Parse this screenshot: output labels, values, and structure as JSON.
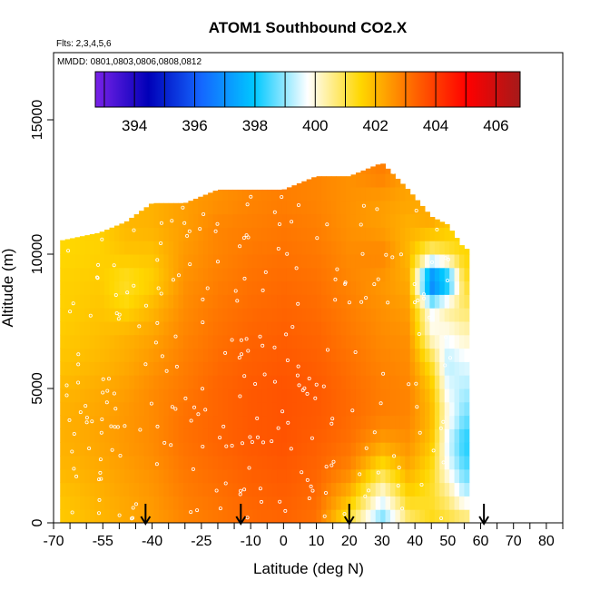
{
  "chart_data": {
    "type": "heatmap",
    "title": "ATOM1 Southbound CO2.X",
    "flights_note": "Flts: 2,3,4,5,6",
    "dates_note": "MMDD: 0801,0803,0806,0808,0812",
    "xlabel": "Latitude (deg N)",
    "ylabel": "Altitude (m)",
    "xlim": [
      -70,
      85
    ],
    "ylim": [
      0,
      17500
    ],
    "x_ticks": [
      -70,
      -55,
      -40,
      -25,
      -10,
      0,
      10,
      20,
      30,
      40,
      50,
      60,
      70,
      80
    ],
    "y_ticks": [
      0,
      5000,
      10000,
      15000
    ],
    "colorbar": {
      "range": [
        392.7,
        406.8
      ],
      "ticks": [
        394,
        396,
        398,
        400,
        402,
        404,
        406
      ],
      "colors": [
        "#7a22e8",
        "#0000b8",
        "#1467ff",
        "#00c8ff",
        "#ffffff",
        "#ffd700",
        "#ff6600",
        "#ff0000",
        "#a51a1a"
      ]
    },
    "arrows_latitude": [
      -42,
      -13,
      20,
      61
    ],
    "profiles": [
      {
        "lat": -68,
        "top": 10500,
        "v": [
          401.7,
          401.8,
          402.0,
          402.1,
          402.1,
          402.0,
          401.8,
          401.7,
          401.6,
          401.6,
          401.5
        ]
      },
      {
        "lat": -56,
        "top": 10800,
        "v": [
          402.0,
          402.1,
          402.2,
          402.3,
          402.3,
          402.2,
          402.0,
          401.9,
          401.8,
          401.7,
          401.6
        ]
      },
      {
        "lat": -48,
        "top": 11200,
        "v": [
          402.2,
          402.3,
          402.4,
          402.5,
          402.5,
          402.4,
          402.2,
          402.1,
          401.5,
          401.2,
          401.8,
          402.0
        ]
      },
      {
        "lat": -40,
        "top": 11900,
        "v": [
          402.4,
          402.5,
          402.6,
          402.7,
          402.7,
          402.7,
          402.5,
          402.3,
          402.0,
          401.6,
          401.8,
          402.1
        ]
      },
      {
        "lat": -30,
        "top": 11900,
        "v": [
          402.8,
          402.9,
          403.0,
          403.1,
          403.1,
          403.0,
          402.9,
          402.8,
          402.7,
          402.6,
          402.5,
          402.4
        ]
      },
      {
        "lat": -20,
        "top": 12400,
        "v": [
          403.0,
          403.1,
          403.2,
          403.3,
          403.3,
          403.3,
          403.2,
          403.1,
          403.0,
          402.9,
          402.8,
          402.8,
          402.6
        ]
      },
      {
        "lat": -10,
        "top": 12400,
        "v": [
          403.2,
          403.3,
          403.4,
          403.5,
          403.5,
          403.5,
          403.4,
          403.3,
          403.2,
          403.1,
          403.0,
          402.9,
          402.8
        ]
      },
      {
        "lat": 0,
        "top": 12400,
        "v": [
          403.3,
          403.4,
          403.5,
          403.6,
          403.6,
          403.6,
          403.5,
          403.4,
          403.3,
          403.2,
          403.1,
          403.0,
          402.9
        ]
      },
      {
        "lat": 10,
        "top": 12900,
        "v": [
          403.1,
          403.2,
          403.3,
          403.4,
          403.5,
          403.5,
          403.4,
          403.3,
          403.2,
          403.1,
          403.0,
          402.9,
          402.8
        ]
      },
      {
        "lat": 20,
        "top": 12900,
        "v": [
          401.0,
          402.0,
          402.8,
          403.1,
          403.2,
          403.2,
          403.1,
          403.0,
          402.9,
          402.8,
          402.7,
          402.6,
          402.6
        ]
      },
      {
        "lat": 30,
        "top": 13400,
        "v": [
          398.6,
          399.8,
          401.2,
          402.4,
          402.9,
          402.9,
          402.8,
          402.7,
          402.6,
          402.5,
          402.8,
          402.4,
          402.4,
          402.9
        ]
      },
      {
        "lat": 38,
        "top": 12400,
        "v": [
          400.6,
          401.5,
          402.2,
          402.6,
          402.8,
          402.8,
          402.7,
          402.6,
          402.4,
          402.2,
          402.0,
          402.1,
          402.3
        ]
      },
      {
        "lat": 45,
        "top": 11400,
        "v": [
          401.4,
          401.2,
          401.4,
          401.8,
          402.0,
          401.8,
          401.2,
          400.0,
          399.6,
          396.0,
          400.5,
          402.2
        ]
      },
      {
        "lat": 50,
        "top": 11100,
        "v": [
          401.2,
          400.6,
          399.8,
          399.5,
          400.0,
          399.6,
          399.2,
          399.8,
          400.5,
          397.5,
          401.0,
          401.8
        ]
      },
      {
        "lat": 55,
        "top": 10200,
        "v": [
          401.0,
          399.4,
          398.6,
          398.2,
          398.8,
          399.2,
          399.6,
          400.2,
          400.8,
          401.2,
          401.5
        ]
      }
    ]
  }
}
